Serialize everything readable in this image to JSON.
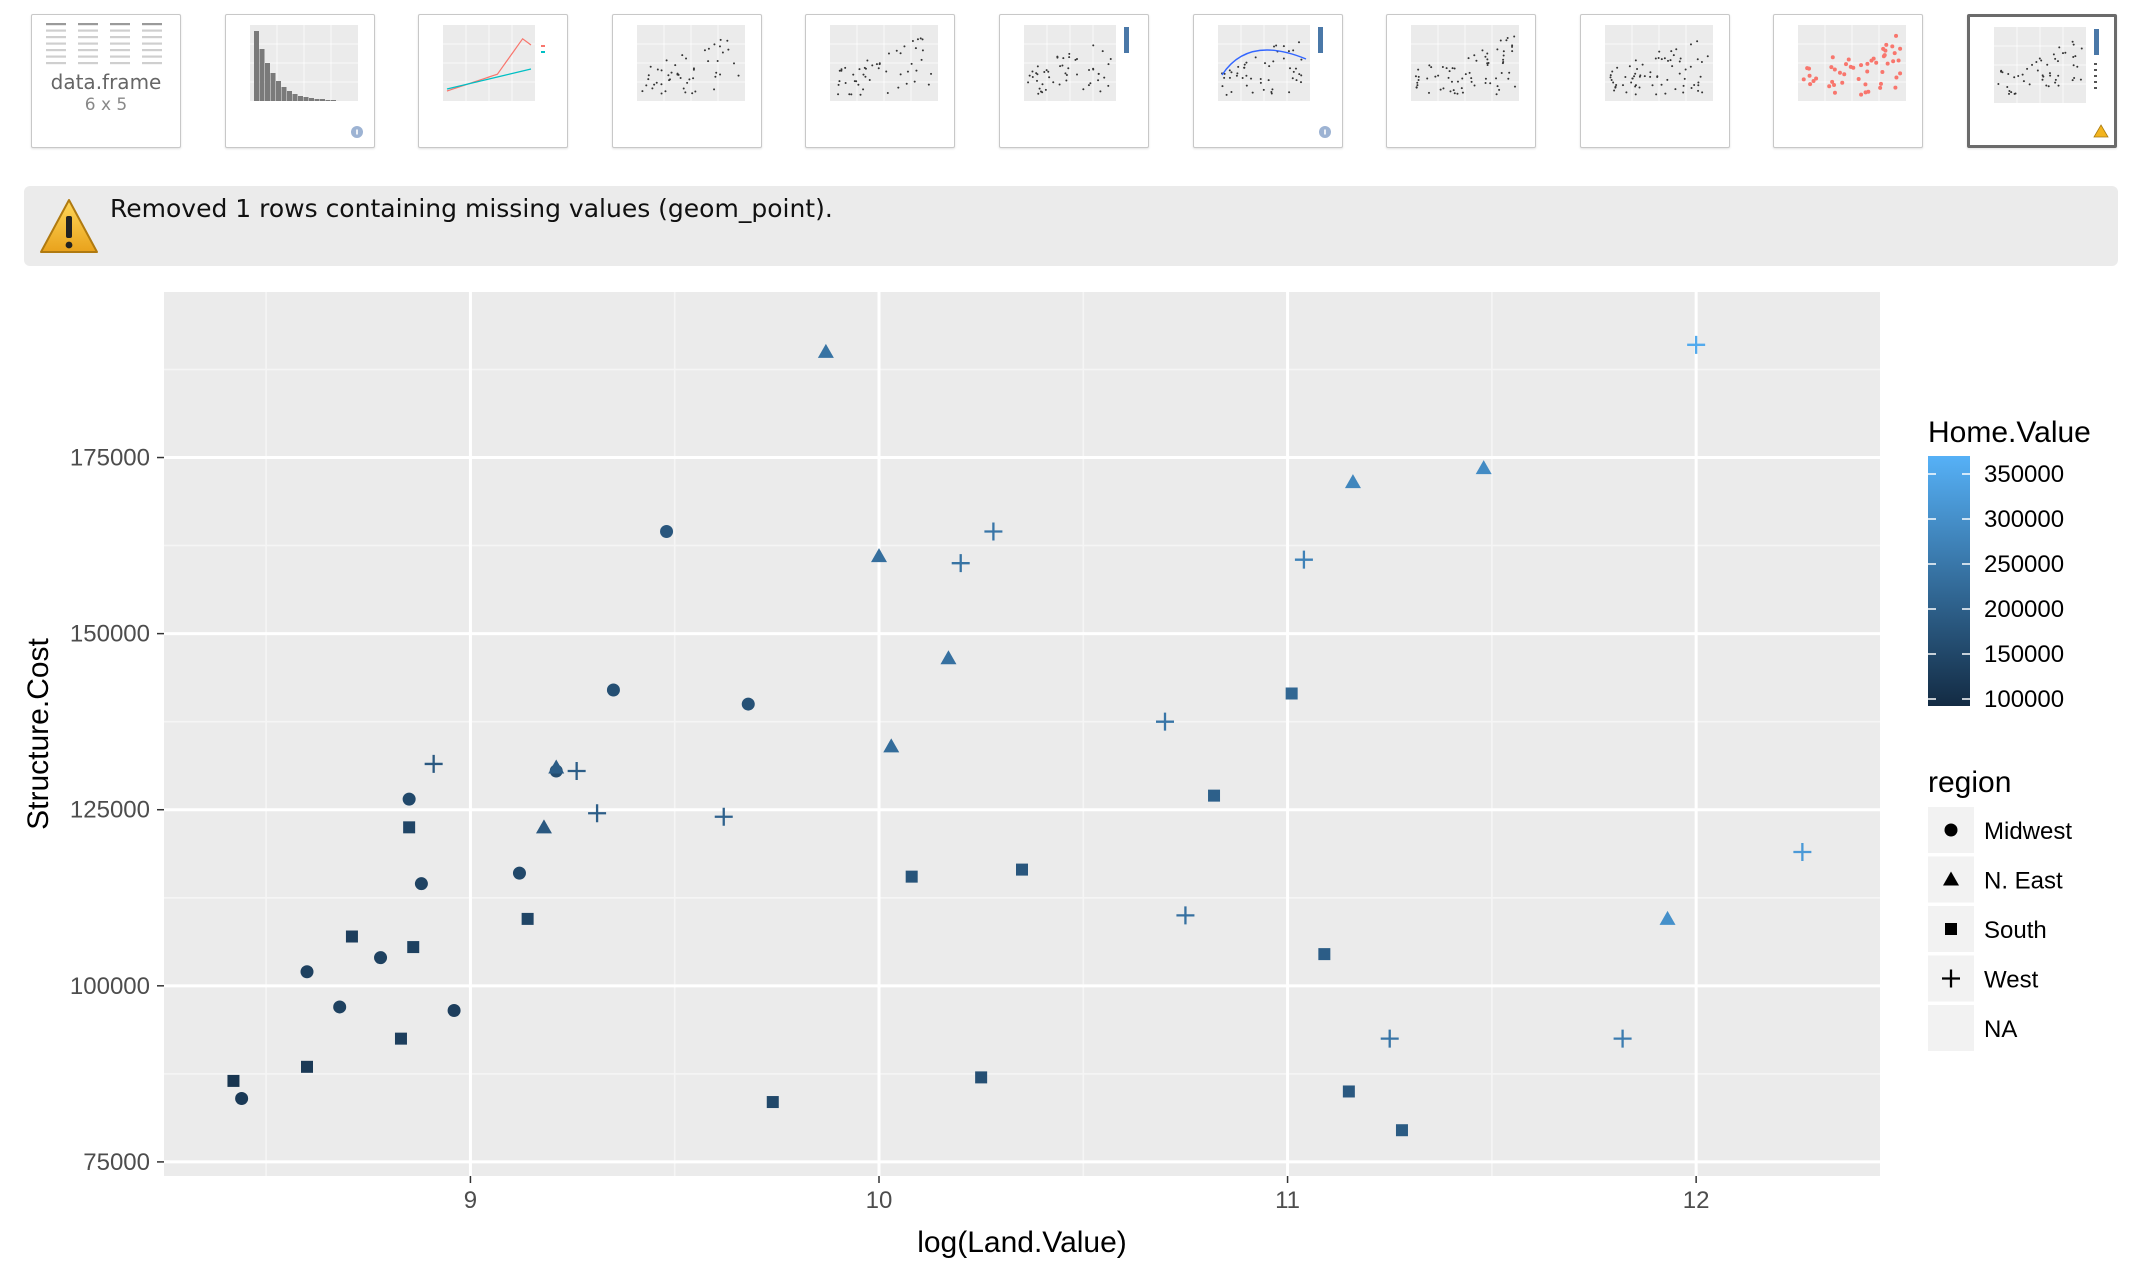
{
  "thumbnails": [
    {
      "kind": "dataframe",
      "label": "data.frame",
      "dims": "6 x 5"
    },
    {
      "kind": "histogram",
      "badge": "info"
    },
    {
      "kind": "lines"
    },
    {
      "kind": "scatter"
    },
    {
      "kind": "scatter"
    },
    {
      "kind": "scatter-gradient"
    },
    {
      "kind": "scatter-smooth",
      "badge": "info"
    },
    {
      "kind": "scatter-text"
    },
    {
      "kind": "scatter-text"
    },
    {
      "kind": "scatter-red"
    },
    {
      "kind": "scatter-shapes",
      "badge": "warning",
      "selected": true
    }
  ],
  "warning": {
    "icon": "warning-icon",
    "text": "Removed 1 rows containing missing values (geom_point)."
  },
  "chart_data": {
    "type": "scatter",
    "xlabel": "log(Land.Value)",
    "ylabel": "Structure.Cost",
    "xlim": [
      8.25,
      12.45
    ],
    "ylim": [
      73000,
      198500
    ],
    "xticks": [
      9,
      10,
      11,
      12
    ],
    "yticks": [
      75000,
      100000,
      125000,
      150000,
      175000
    ],
    "grid": true,
    "panel_background": "#ebebeb",
    "legend_position": "right",
    "color_legend": {
      "title": "Home.Value",
      "labels": [
        "350000",
        "300000",
        "250000",
        "200000",
        "150000",
        "100000"
      ],
      "low_color": "#132b43",
      "high_color": "#56b1f7"
    },
    "shape_legend": {
      "title": "region",
      "entries": [
        {
          "label": "Midwest",
          "shape": "circle"
        },
        {
          "label": "N. East",
          "shape": "triangle"
        },
        {
          "label": "South",
          "shape": "square"
        },
        {
          "label": "West",
          "shape": "plus"
        },
        {
          "label": "NA",
          "shape": "none"
        }
      ]
    },
    "points": [
      {
        "x": 8.44,
        "y": 84000,
        "region": "Midwest",
        "home_value": 110000
      },
      {
        "x": 8.6,
        "y": 102000,
        "region": "Midwest",
        "home_value": 125000
      },
      {
        "x": 8.68,
        "y": 97000,
        "region": "Midwest",
        "home_value": 125000
      },
      {
        "x": 8.78,
        "y": 104000,
        "region": "Midwest",
        "home_value": 125000
      },
      {
        "x": 8.85,
        "y": 126500,
        "region": "Midwest",
        "home_value": 140000
      },
      {
        "x": 8.88,
        "y": 114500,
        "region": "Midwest",
        "home_value": 130000
      },
      {
        "x": 8.96,
        "y": 96500,
        "region": "Midwest",
        "home_value": 120000
      },
      {
        "x": 9.12,
        "y": 116000,
        "region": "Midwest",
        "home_value": 140000
      },
      {
        "x": 9.21,
        "y": 130500,
        "region": "Midwest",
        "home_value": 150000
      },
      {
        "x": 9.35,
        "y": 142000,
        "region": "Midwest",
        "home_value": 155000
      },
      {
        "x": 9.48,
        "y": 164500,
        "region": "Midwest",
        "home_value": 170000
      },
      {
        "x": 9.68,
        "y": 140000,
        "region": "Midwest",
        "home_value": 160000
      },
      {
        "x": 9.18,
        "y": 122500,
        "region": "N. East",
        "home_value": 175000
      },
      {
        "x": 9.21,
        "y": 131000,
        "region": "N. East",
        "home_value": 185000
      },
      {
        "x": 9.87,
        "y": 190000,
        "region": "N. East",
        "home_value": 230000
      },
      {
        "x": 10.0,
        "y": 161000,
        "region": "N. East",
        "home_value": 220000
      },
      {
        "x": 10.03,
        "y": 134000,
        "region": "N. East",
        "home_value": 215000
      },
      {
        "x": 10.17,
        "y": 146500,
        "region": "N. East",
        "home_value": 225000
      },
      {
        "x": 11.16,
        "y": 171500,
        "region": "N. East",
        "home_value": 270000
      },
      {
        "x": 11.48,
        "y": 173500,
        "region": "N. East",
        "home_value": 280000
      },
      {
        "x": 11.93,
        "y": 109500,
        "region": "N. East",
        "home_value": 290000
      },
      {
        "x": 8.42,
        "y": 86500,
        "region": "South",
        "home_value": 100000
      },
      {
        "x": 8.6,
        "y": 88500,
        "region": "South",
        "home_value": 110000
      },
      {
        "x": 8.71,
        "y": 107000,
        "region": "South",
        "home_value": 120000
      },
      {
        "x": 8.83,
        "y": 92500,
        "region": "South",
        "home_value": 120000
      },
      {
        "x": 8.85,
        "y": 122500,
        "region": "South",
        "home_value": 135000
      },
      {
        "x": 8.86,
        "y": 105500,
        "region": "South",
        "home_value": 125000
      },
      {
        "x": 9.14,
        "y": 109500,
        "region": "South",
        "home_value": 135000
      },
      {
        "x": 9.74,
        "y": 83500,
        "region": "South",
        "home_value": 140000
      },
      {
        "x": 10.08,
        "y": 115500,
        "region": "South",
        "home_value": 165000
      },
      {
        "x": 10.25,
        "y": 87000,
        "region": "South",
        "home_value": 155000
      },
      {
        "x": 10.35,
        "y": 116500,
        "region": "South",
        "home_value": 170000
      },
      {
        "x": 10.82,
        "y": 127000,
        "region": "South",
        "home_value": 190000
      },
      {
        "x": 11.01,
        "y": 141500,
        "region": "South",
        "home_value": 205000
      },
      {
        "x": 11.09,
        "y": 104500,
        "region": "South",
        "home_value": 185000
      },
      {
        "x": 11.15,
        "y": 85000,
        "region": "South",
        "home_value": 175000
      },
      {
        "x": 11.28,
        "y": 79500,
        "region": "South",
        "home_value": 180000
      },
      {
        "x": 8.91,
        "y": 131500,
        "region": "West",
        "home_value": 175000
      },
      {
        "x": 9.26,
        "y": 130500,
        "region": "West",
        "home_value": 185000
      },
      {
        "x": 9.31,
        "y": 124500,
        "region": "West",
        "home_value": 185000
      },
      {
        "x": 9.62,
        "y": 124000,
        "region": "West",
        "home_value": 195000
      },
      {
        "x": 10.2,
        "y": 160000,
        "region": "West",
        "home_value": 230000
      },
      {
        "x": 10.28,
        "y": 164500,
        "region": "West",
        "home_value": 235000
      },
      {
        "x": 10.7,
        "y": 137500,
        "region": "West",
        "home_value": 235000
      },
      {
        "x": 10.75,
        "y": 110000,
        "region": "West",
        "home_value": 225000
      },
      {
        "x": 11.04,
        "y": 160500,
        "region": "West",
        "home_value": 260000
      },
      {
        "x": 11.25,
        "y": 92500,
        "region": "West",
        "home_value": 235000
      },
      {
        "x": 11.82,
        "y": 92500,
        "region": "West",
        "home_value": 250000
      },
      {
        "x": 12.0,
        "y": 191000,
        "region": "West",
        "home_value": 345000
      },
      {
        "x": 12.26,
        "y": 119000,
        "region": "West",
        "home_value": 310000
      }
    ]
  }
}
